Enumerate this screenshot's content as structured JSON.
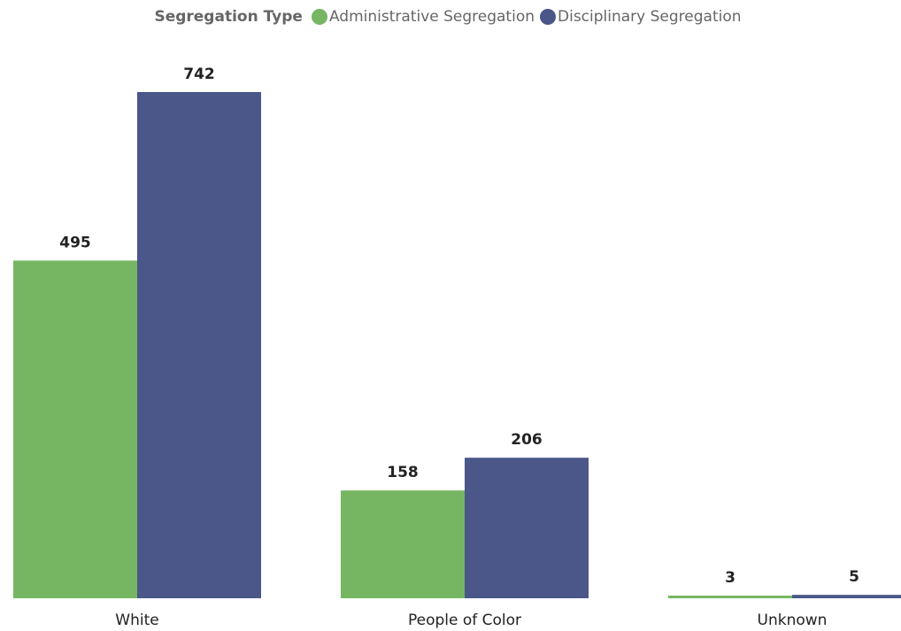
{
  "chart_data": {
    "type": "bar",
    "legend_title": "Segregation Type",
    "legend_position": "top-center",
    "categories": [
      "White",
      "People of Color",
      "Unknown"
    ],
    "series": [
      {
        "name": "Administrative Segregation",
        "color": "#76b662",
        "values": [
          495,
          158,
          3
        ]
      },
      {
        "name": "Disciplinary Segregation",
        "color": "#4a5788",
        "values": [
          742,
          206,
          5
        ]
      }
    ],
    "ylim": [
      0,
      742
    ],
    "grid": false,
    "data_labels": true,
    "xlabel": "",
    "ylabel": ""
  }
}
